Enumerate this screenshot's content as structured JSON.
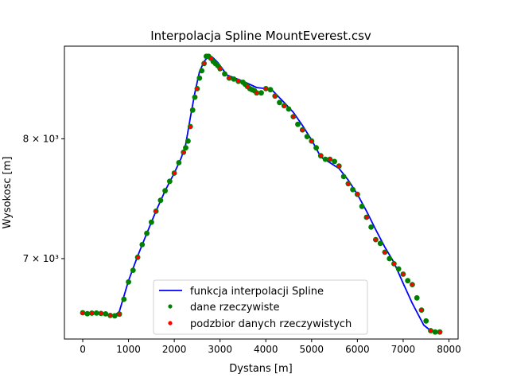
{
  "chart_data": {
    "type": "line",
    "title": "Interpolacja Spline MountEverest.csv",
    "xlabel": "Dystans [m]",
    "ylabel": "Wysokosc [m]",
    "xlim": [
      -400,
      8200
    ],
    "ylim": [
      6400,
      8870
    ],
    "yscale": "log",
    "xticks": [
      0,
      1000,
      2000,
      3000,
      4000,
      5000,
      6000,
      7000,
      8000
    ],
    "xtick_labels": [
      "0",
      "1000",
      "2000",
      "3000",
      "4000",
      "5000",
      "6000",
      "7000",
      "8000"
    ],
    "yticks": [
      7000,
      8000
    ],
    "ytick_labels": [
      "7 × 10³",
      "8 × 10³"
    ],
    "grid": false,
    "legend_position": "lower center",
    "colors": {
      "spline": "#0000ff",
      "data": "#008000",
      "subset": "#ff0000"
    },
    "series": [
      {
        "name": "funkcja interpolacji Spline",
        "kind": "line",
        "x": [
          0,
          200,
          400,
          600,
          700,
          800,
          1000,
          1200,
          1400,
          1600,
          1800,
          2000,
          2150,
          2250,
          2350,
          2450,
          2550,
          2650,
          2750,
          2850,
          2950,
          3150,
          3500,
          3800,
          4000,
          4150,
          4400,
          4600,
          4800,
          5000,
          5200,
          5400,
          5600,
          5800,
          6000,
          6200,
          6400,
          6600,
          6800,
          7000,
          7200,
          7450,
          7600,
          7800
        ],
        "y": [
          6590,
          6585,
          6585,
          6570,
          6570,
          6600,
          6830,
          7020,
          7200,
          7380,
          7550,
          7700,
          7830,
          7950,
          8190,
          8420,
          8620,
          8720,
          8770,
          8755,
          8710,
          8590,
          8530,
          8470,
          8460,
          8440,
          8330,
          8240,
          8120,
          7990,
          7840,
          7790,
          7740,
          7640,
          7520,
          7380,
          7230,
          7090,
          6970,
          6810,
          6660,
          6500,
          6460,
          6450
        ]
      },
      {
        "name": "dane rzeczywiste",
        "kind": "scatter",
        "x": [
          0,
          100,
          200,
          300,
          400,
          500,
          600,
          700,
          800,
          900,
          1000,
          1100,
          1200,
          1300,
          1400,
          1500,
          1600,
          1700,
          1800,
          1900,
          2000,
          2100,
          2200,
          2250,
          2300,
          2350,
          2400,
          2450,
          2500,
          2550,
          2600,
          2650,
          2700,
          2750,
          2800,
          2850,
          2900,
          2950,
          3000,
          3100,
          3200,
          3300,
          3400,
          3500,
          3550,
          3600,
          3650,
          3700,
          3750,
          3800,
          3900,
          4000,
          4100,
          4200,
          4300,
          4400,
          4500,
          4600,
          4700,
          4800,
          4900,
          5000,
          5100,
          5200,
          5300,
          5400,
          5500,
          5600,
          5700,
          5800,
          5900,
          6000,
          6100,
          6200,
          6300,
          6400,
          6500,
          6600,
          6700,
          6800,
          6900,
          7000,
          7100,
          7200,
          7300,
          7400,
          7500,
          7600,
          7700,
          7800
        ],
        "y": [
          6590,
          6583,
          6587,
          6588,
          6585,
          6582,
          6570,
          6568,
          6580,
          6690,
          6820,
          6910,
          7010,
          7110,
          7200,
          7290,
          7380,
          7470,
          7550,
          7630,
          7700,
          7790,
          7880,
          7920,
          7980,
          8110,
          8260,
          8380,
          8460,
          8560,
          8630,
          8700,
          8770,
          8770,
          8750,
          8720,
          8700,
          8680,
          8650,
          8600,
          8560,
          8550,
          8530,
          8520,
          8500,
          8480,
          8460,
          8450,
          8440,
          8420,
          8420,
          8460,
          8450,
          8390,
          8330,
          8300,
          8270,
          8200,
          8130,
          8080,
          8020,
          7980,
          7920,
          7850,
          7820,
          7820,
          7800,
          7760,
          7670,
          7610,
          7560,
          7520,
          7420,
          7330,
          7250,
          7150,
          7120,
          7050,
          7000,
          6960,
          6920,
          6880,
          6830,
          6800,
          6700,
          6610,
          6530,
          6460,
          6450,
          6450
        ]
      },
      {
        "name": "podzbior danych rzeczywistych",
        "kind": "scatter",
        "x": [
          0,
          200,
          400,
          600,
          800,
          1200,
          1600,
          2000,
          2200,
          2350,
          2500,
          2650,
          2800,
          3000,
          3200,
          3400,
          3600,
          3800,
          4000,
          4200,
          4400,
          4600,
          4800,
          5000,
          5200,
          5400,
          5600,
          5800,
          6000,
          6200,
          6400,
          6600,
          6800,
          7000,
          7200,
          7400,
          7600,
          7800
        ],
        "y": [
          6590,
          6587,
          6585,
          6570,
          6580,
          7010,
          7380,
          7700,
          7880,
          8110,
          8460,
          8700,
          8750,
          8650,
          8560,
          8530,
          8480,
          8420,
          8460,
          8390,
          8300,
          8200,
          8080,
          7980,
          7850,
          7820,
          7760,
          7610,
          7520,
          7330,
          7150,
          7050,
          6960,
          6880,
          6800,
          6610,
          6460,
          6450
        ]
      }
    ]
  }
}
